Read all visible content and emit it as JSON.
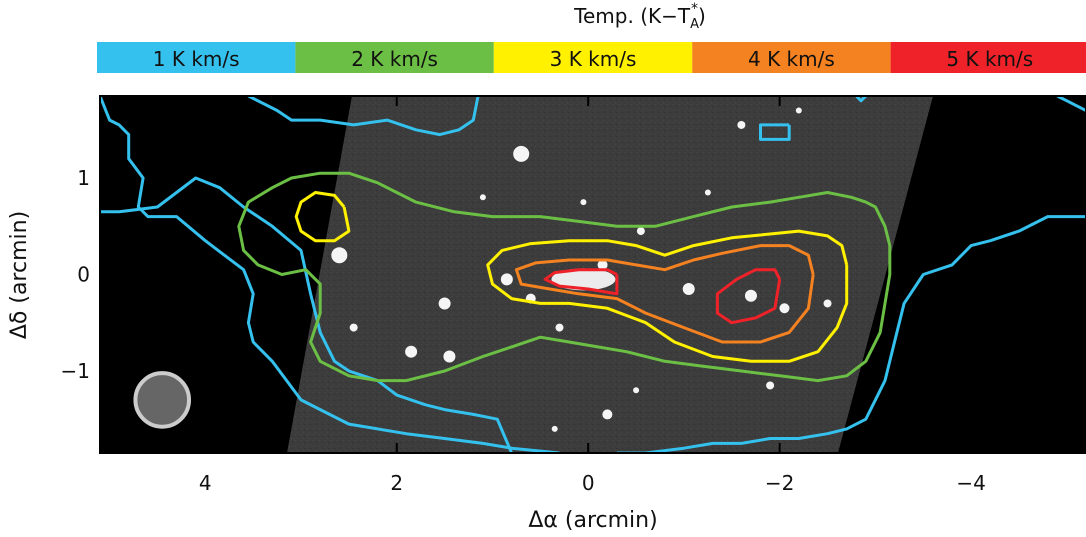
{
  "chart_data": {
    "type": "contour",
    "colorbar": {
      "title_main": "Temp. (K−T",
      "title_sub": "A",
      "title_sup": "*",
      "title_close": ")",
      "bins": [
        {
          "label": "1  K km/s",
          "color": "#35c1ee"
        },
        {
          "label": "2  K km/s",
          "color": "#6cbf45"
        },
        {
          "label": "3  K km/s",
          "color": "#fff100"
        },
        {
          "label": "4  K km/s",
          "color": "#f58220"
        },
        {
          "label": "5  K km/s",
          "color": "#ee2228"
        }
      ]
    },
    "xlabel": "Δα (arcmin)",
    "ylabel": "Δδ (arcmin)",
    "xlim": [
      5.1,
      -5.2
    ],
    "ylim": [
      -1.85,
      1.85
    ],
    "xticks": [
      {
        "value": -4,
        "label": "−4"
      },
      {
        "value": -2,
        "label": "−2"
      },
      {
        "value": 0,
        "label": "0"
      },
      {
        "value": 2,
        "label": "2"
      },
      {
        "value": 4,
        "label": "4"
      }
    ],
    "yticks": [
      {
        "value": -1,
        "label": "−1"
      },
      {
        "value": 0,
        "label": "0"
      },
      {
        "value": 1,
        "label": "1"
      }
    ],
    "background_image": "grayscale continuum image strip (tilted) with point sources",
    "beam": {
      "x": 4.45,
      "y": -1.3,
      "radius_arcmin": 0.28,
      "color": "#666666",
      "edge": "#cccccc"
    },
    "contours": [
      {
        "level": 1,
        "color": "#35c1ee",
        "paths": [
          [
            [
              5.1,
              1.85
            ],
            [
              5.0,
              1.6
            ],
            [
              4.9,
              1.55
            ],
            [
              4.8,
              1.45
            ],
            [
              4.8,
              1.2
            ],
            [
              4.65,
              1.0
            ],
            [
              4.7,
              0.7
            ],
            [
              4.6,
              0.6
            ],
            [
              4.3,
              0.6
            ],
            [
              4.0,
              0.35
            ],
            [
              3.8,
              0.2
            ],
            [
              3.6,
              0.05
            ],
            [
              3.5,
              -0.2
            ],
            [
              3.55,
              -0.5
            ],
            [
              3.5,
              -0.7
            ],
            [
              3.3,
              -0.9
            ],
            [
              3.0,
              -1.3
            ],
            [
              2.8,
              -1.4
            ],
            [
              2.5,
              -1.55
            ],
            [
              2.2,
              -1.6
            ],
            [
              1.9,
              -1.65
            ],
            [
              1.5,
              -1.7
            ],
            [
              1.1,
              -1.75
            ],
            [
              0.8,
              -1.8
            ],
            [
              0.3,
              -1.85
            ]
          ],
          [
            [
              0.8,
              -1.85
            ],
            [
              0.95,
              -1.5
            ],
            [
              1.2,
              -1.45
            ],
            [
              1.5,
              -1.4
            ],
            [
              1.7,
              -1.35
            ],
            [
              2.0,
              -1.25
            ],
            [
              2.2,
              -1.1
            ],
            [
              2.5,
              -1.0
            ],
            [
              2.65,
              -0.9
            ],
            [
              2.8,
              -0.6
            ],
            [
              2.9,
              -0.2
            ],
            [
              3.0,
              0.25
            ],
            [
              3.3,
              0.5
            ],
            [
              3.6,
              0.7
            ],
            [
              3.85,
              0.9
            ],
            [
              4.1,
              1.0
            ],
            [
              4.5,
              0.7
            ],
            [
              4.9,
              0.65
            ],
            [
              5.1,
              0.65
            ]
          ],
          [
            [
              1.15,
              1.85
            ],
            [
              1.2,
              1.6
            ],
            [
              1.35,
              1.5
            ],
            [
              1.55,
              1.45
            ],
            [
              1.8,
              1.5
            ],
            [
              2.1,
              1.6
            ],
            [
              2.45,
              1.55
            ],
            [
              2.8,
              1.6
            ],
            [
              3.1,
              1.6
            ],
            [
              3.25,
              1.7
            ],
            [
              3.55,
              1.85
            ]
          ],
          [
            [
              -5.2,
              0.6
            ],
            [
              -4.8,
              0.6
            ],
            [
              -4.5,
              0.45
            ],
            [
              -4.2,
              0.35
            ],
            [
              -4.0,
              0.3
            ],
            [
              -3.8,
              0.1
            ],
            [
              -3.5,
              0.0
            ],
            [
              -3.3,
              -0.3
            ],
            [
              -3.2,
              -0.7
            ],
            [
              -3.1,
              -1.1
            ],
            [
              -3.0,
              -1.3
            ],
            [
              -2.9,
              -1.5
            ],
            [
              -2.7,
              -1.6
            ],
            [
              -2.5,
              -1.65
            ],
            [
              -2.2,
              -1.7
            ],
            [
              -1.9,
              -1.7
            ],
            [
              -1.6,
              -1.75
            ],
            [
              -1.3,
              -1.75
            ],
            [
              -1.0,
              -1.8
            ],
            [
              -0.6,
              -1.85
            ],
            [
              -0.3,
              -1.85
            ]
          ],
          [
            [
              -5.2,
              1.7
            ],
            [
              -5.0,
              1.8
            ],
            [
              -4.9,
              1.85
            ]
          ],
          [
            [
              -2.1,
              1.55
            ],
            [
              -1.8,
              1.55
            ],
            [
              -1.8,
              1.4
            ],
            [
              -2.1,
              1.4
            ],
            [
              -2.1,
              1.55
            ]
          ],
          [
            [
              -2.9,
              1.85
            ],
            [
              -2.85,
              1.8
            ],
            [
              -2.8,
              1.85
            ]
          ]
        ]
      },
      {
        "level": 2,
        "color": "#6cbf45",
        "paths": [
          [
            [
              -3.15,
              0.3
            ],
            [
              -3.1,
              0.5
            ],
            [
              -3.0,
              0.7
            ],
            [
              -2.9,
              0.75
            ],
            [
              -2.75,
              0.8
            ],
            [
              -2.5,
              0.85
            ],
            [
              -2.2,
              0.8
            ],
            [
              -1.9,
              0.75
            ],
            [
              -1.5,
              0.7
            ],
            [
              -1.1,
              0.6
            ],
            [
              -0.7,
              0.5
            ],
            [
              -0.3,
              0.5
            ],
            [
              0.1,
              0.55
            ],
            [
              0.5,
              0.6
            ],
            [
              1.0,
              0.6
            ],
            [
              1.4,
              0.65
            ],
            [
              1.8,
              0.75
            ],
            [
              2.2,
              0.95
            ],
            [
              2.5,
              1.05
            ],
            [
              2.8,
              1.05
            ],
            [
              3.1,
              1.0
            ],
            [
              3.3,
              0.9
            ],
            [
              3.55,
              0.75
            ],
            [
              3.65,
              0.5
            ],
            [
              3.6,
              0.25
            ],
            [
              3.45,
              0.1
            ],
            [
              3.2,
              0.0
            ],
            [
              2.95,
              0.05
            ],
            [
              2.8,
              -0.1
            ],
            [
              2.8,
              -0.4
            ],
            [
              2.9,
              -0.7
            ],
            [
              2.8,
              -0.9
            ],
            [
              2.5,
              -1.05
            ],
            [
              2.2,
              -1.1
            ],
            [
              1.9,
              -1.1
            ],
            [
              1.5,
              -1.0
            ],
            [
              1.1,
              -0.85
            ],
            [
              0.8,
              -0.75
            ],
            [
              0.5,
              -0.65
            ],
            [
              0.2,
              -0.7
            ],
            [
              -0.1,
              -0.75
            ],
            [
              -0.4,
              -0.8
            ],
            [
              -0.8,
              -0.9
            ],
            [
              -1.2,
              -0.95
            ],
            [
              -1.6,
              -1.0
            ],
            [
              -2.0,
              -1.05
            ],
            [
              -2.4,
              -1.1
            ],
            [
              -2.7,
              -1.05
            ],
            [
              -2.9,
              -0.9
            ],
            [
              -3.05,
              -0.6
            ],
            [
              -3.1,
              -0.3
            ],
            [
              -3.15,
              0.0
            ],
            [
              -3.15,
              0.3
            ]
          ]
        ]
      },
      {
        "level": 3,
        "color": "#fff100",
        "paths": [
          [
            [
              -2.7,
              0.1
            ],
            [
              -2.65,
              0.3
            ],
            [
              -2.5,
              0.4
            ],
            [
              -2.2,
              0.45
            ],
            [
              -1.9,
              0.42
            ],
            [
              -1.5,
              0.38
            ],
            [
              -1.1,
              0.3
            ],
            [
              -0.8,
              0.2
            ],
            [
              -0.5,
              0.3
            ],
            [
              -0.2,
              0.35
            ],
            [
              0.2,
              0.35
            ],
            [
              0.6,
              0.32
            ],
            [
              0.9,
              0.25
            ],
            [
              1.05,
              0.1
            ],
            [
              1.0,
              -0.1
            ],
            [
              0.8,
              -0.25
            ],
            [
              0.5,
              -0.3
            ],
            [
              0.2,
              -0.3
            ],
            [
              -0.2,
              -0.35
            ],
            [
              -0.6,
              -0.5
            ],
            [
              -0.9,
              -0.7
            ],
            [
              -1.3,
              -0.85
            ],
            [
              -1.7,
              -0.9
            ],
            [
              -2.1,
              -0.9
            ],
            [
              -2.4,
              -0.8
            ],
            [
              -2.6,
              -0.55
            ],
            [
              -2.7,
              -0.3
            ],
            [
              -2.7,
              0.1
            ]
          ],
          [
            [
              2.55,
              0.7
            ],
            [
              2.65,
              0.82
            ],
            [
              2.85,
              0.85
            ],
            [
              3.0,
              0.75
            ],
            [
              3.05,
              0.6
            ],
            [
              3.0,
              0.45
            ],
            [
              2.85,
              0.35
            ],
            [
              2.65,
              0.35
            ],
            [
              2.5,
              0.45
            ],
            [
              2.55,
              0.7
            ]
          ]
        ]
      },
      {
        "level": 4,
        "color": "#f58220",
        "paths": [
          [
            [
              -2.35,
              0.0
            ],
            [
              -2.3,
              0.2
            ],
            [
              -2.1,
              0.3
            ],
            [
              -1.8,
              0.3
            ],
            [
              -1.4,
              0.22
            ],
            [
              -1.1,
              0.15
            ],
            [
              -0.8,
              0.05
            ],
            [
              -0.5,
              0.1
            ],
            [
              -0.2,
              0.15
            ],
            [
              0.2,
              0.15
            ],
            [
              0.55,
              0.12
            ],
            [
              0.75,
              0.05
            ],
            [
              0.7,
              -0.1
            ],
            [
              0.4,
              -0.15
            ],
            [
              0.1,
              -0.2
            ],
            [
              -0.3,
              -0.25
            ],
            [
              -0.6,
              -0.4
            ],
            [
              -1.0,
              -0.55
            ],
            [
              -1.4,
              -0.7
            ],
            [
              -1.8,
              -0.7
            ],
            [
              -2.1,
              -0.6
            ],
            [
              -2.3,
              -0.35
            ],
            [
              -2.35,
              0.0
            ]
          ]
        ]
      },
      {
        "level": 5,
        "color": "#ee2228",
        "paths": [
          [
            [
              -2.0,
              -0.05
            ],
            [
              -1.95,
              0.05
            ],
            [
              -1.75,
              0.05
            ],
            [
              -1.55,
              -0.05
            ],
            [
              -1.35,
              -0.2
            ],
            [
              -1.35,
              -0.4
            ],
            [
              -1.5,
              -0.5
            ],
            [
              -1.75,
              -0.45
            ],
            [
              -1.95,
              -0.35
            ],
            [
              -2.0,
              -0.05
            ]
          ],
          [
            [
              -0.3,
              0.0
            ],
            [
              -0.2,
              0.05
            ],
            [
              0.1,
              0.05
            ],
            [
              0.35,
              0.02
            ],
            [
              0.45,
              -0.05
            ],
            [
              0.3,
              -0.12
            ],
            [
              0.0,
              -0.15
            ],
            [
              -0.3,
              -0.2
            ],
            [
              -0.3,
              0.0
            ]
          ]
        ]
      }
    ]
  }
}
